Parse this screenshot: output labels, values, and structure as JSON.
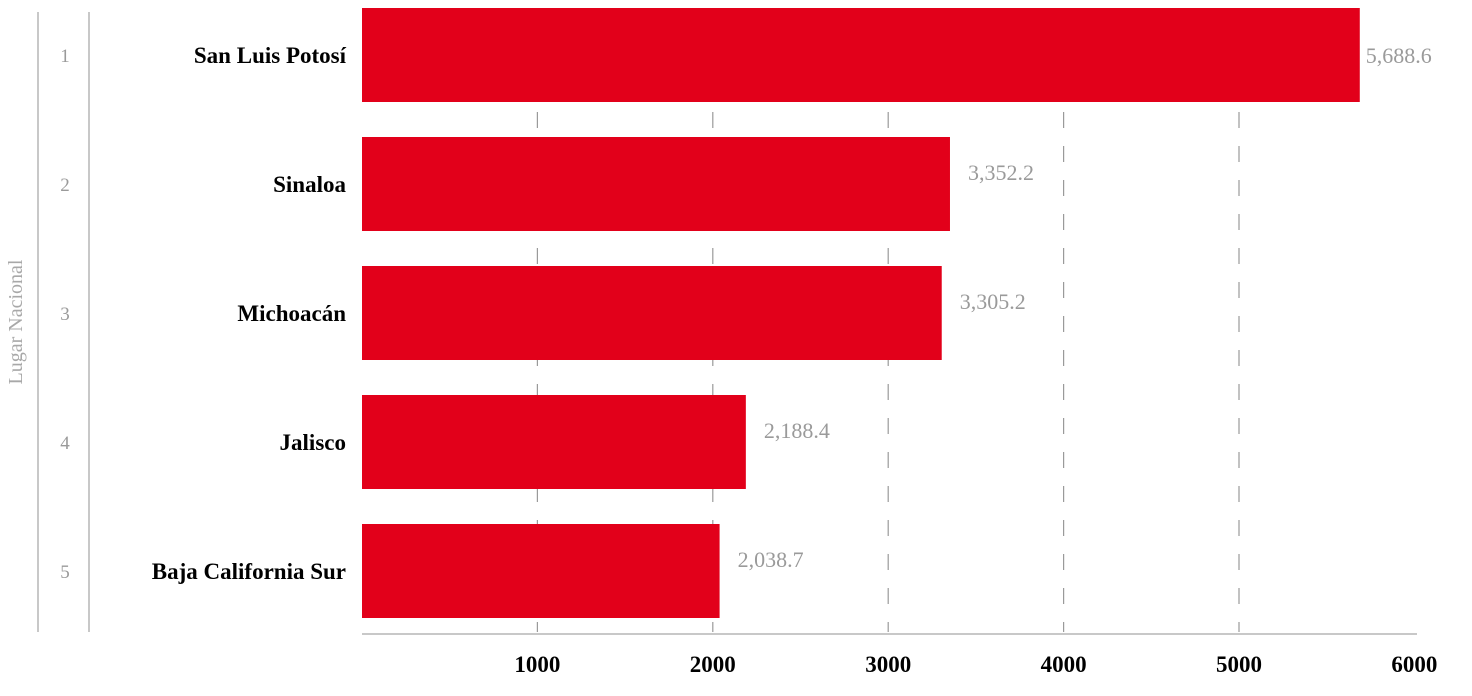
{
  "chart_data": {
    "type": "bar",
    "orientation": "horizontal",
    "side_title": "Lugar Nacional",
    "categories": [
      "San Luis Potosí",
      "Sinaloa",
      "Michoacán",
      "Jalisco",
      "Baja California Sur"
    ],
    "ranks": [
      "1",
      "2",
      "3",
      "4",
      "5"
    ],
    "values": [
      5688.6,
      3352.2,
      3305.2,
      2188.4,
      2038.7
    ],
    "value_labels": [
      "5,688.6",
      "3,352.2",
      "3,305.2",
      "2,188.4",
      "2,038.7"
    ],
    "xlim": [
      0,
      6000
    ],
    "xticks": [
      1000,
      2000,
      3000,
      4000,
      5000,
      6000
    ],
    "xtick_labels": [
      "1000",
      "2000",
      "3000",
      "4000",
      "5000",
      "6000"
    ],
    "grid": "vertical dashed",
    "colors": {
      "bar": "#e2001a",
      "grid": "#9a9a9a",
      "value_label": "#9a9a9a",
      "rank_label": "#9a9a9a"
    }
  }
}
